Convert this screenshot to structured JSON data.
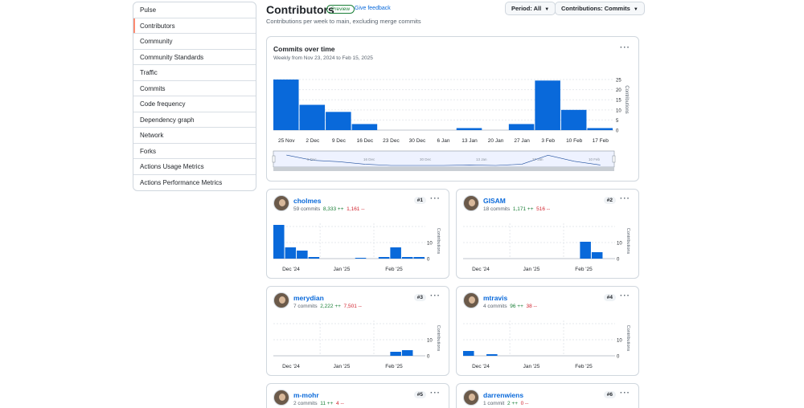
{
  "sidebar": {
    "items": [
      {
        "label": "Pulse"
      },
      {
        "label": "Contributors"
      },
      {
        "label": "Community"
      },
      {
        "label": "Community Standards"
      },
      {
        "label": "Traffic"
      },
      {
        "label": "Commits"
      },
      {
        "label": "Code frequency"
      },
      {
        "label": "Dependency graph"
      },
      {
        "label": "Network"
      },
      {
        "label": "Forks"
      },
      {
        "label": "Actions Usage Metrics"
      },
      {
        "label": "Actions Performance Metrics"
      }
    ],
    "active_index": 1
  },
  "header": {
    "title": "Contributors",
    "badge": "Preview",
    "feedback": "Give feedback",
    "subtitle": "Contributions per week to main, excluding merge commits",
    "period_button": "Period: All",
    "contrib_button": "Contributions: Commits"
  },
  "main_chart": {
    "title": "Commits over time",
    "subtitle": "Weekly from Nov 23, 2024 to Feb 15, 2025",
    "menu": "···",
    "y_axis_label": "Contributions",
    "y_ticks": [
      "25",
      "20",
      "15",
      "10",
      "5",
      "0"
    ],
    "x_labels": [
      "25 Nov",
      "2 Dec",
      "9 Dec",
      "16 Dec",
      "23 Dec",
      "30 Dec",
      "6 Jan",
      "13 Jan",
      "20 Jan",
      "27 Jan",
      "3 Feb",
      "10 Feb",
      "17 Feb"
    ],
    "brush_labels": [
      "5 Dec",
      "16 Dec",
      "30 Dec",
      "13 Jan",
      "27 Jan",
      "10 Feb"
    ]
  },
  "chart_data": [
    {
      "type": "bar",
      "title": "Commits over time",
      "ylabel": "Contributions",
      "categories": [
        "25 Nov",
        "2 Dec",
        "9 Dec",
        "16 Dec",
        "23 Dec",
        "30 Dec",
        "6 Jan",
        "13 Jan",
        "20 Jan",
        "27 Jan",
        "3 Feb",
        "10 Feb",
        "17 Feb"
      ],
      "values": [
        25,
        12.5,
        9,
        3,
        0,
        0,
        0,
        1,
        0,
        3,
        24.5,
        10,
        1
      ],
      "ylim": [
        0,
        27
      ]
    }
  ],
  "contributors": [
    {
      "name": "cholmes",
      "rank": "#1",
      "commits": "59 commits",
      "additions": "8,333 ++",
      "deletions": "1,161 --",
      "values": [
        21,
        7,
        5,
        1,
        0,
        0,
        0,
        0.5,
        0,
        1,
        7,
        1,
        1
      ],
      "x_labels": [
        "Dec '24",
        "Jan '25",
        "Feb '25"
      ],
      "y_ticks": [
        "10",
        "0"
      ],
      "y_label": "Contributions"
    },
    {
      "name": "GISAM",
      "rank": "#2",
      "commits": "18 commits",
      "additions": "1,171 ++",
      "deletions": "516 --",
      "values": [
        0,
        0,
        0,
        0,
        0,
        0,
        0,
        0,
        0,
        0,
        10.5,
        4,
        0
      ],
      "x_labels": [
        "Dec '24",
        "Jan '25",
        "Feb '25"
      ],
      "y_ticks": [
        "10",
        "0"
      ],
      "y_label": "Contributions"
    },
    {
      "name": "merydian",
      "rank": "#3",
      "commits": "7 commits",
      "additions": "2,222 ++",
      "deletions": "7,501 --",
      "values": [
        0,
        0,
        0,
        0,
        0,
        0,
        0,
        0,
        0,
        0,
        2.5,
        3.5,
        0
      ],
      "x_labels": [
        "Dec '24",
        "Jan '25",
        "Feb '25"
      ],
      "y_ticks": [
        "10",
        "0"
      ],
      "y_label": "Contributions"
    },
    {
      "name": "mtravis",
      "rank": "#4",
      "commits": "4 commits",
      "additions": "96 ++",
      "deletions": "38 --",
      "values": [
        3,
        0,
        1,
        0,
        0,
        0,
        0,
        0,
        0,
        0,
        0,
        0,
        0
      ],
      "x_labels": [
        "Dec '24",
        "Jan '25",
        "Feb '25"
      ],
      "y_ticks": [
        "10",
        "0"
      ],
      "y_label": "Contributions"
    },
    {
      "name": "m-mohr",
      "rank": "#5",
      "commits": "2 commits",
      "additions": "11 ++",
      "deletions": "4 --"
    },
    {
      "name": "darrenwiens",
      "rank": "#6",
      "commits": "1 commit",
      "additions": "2 ++",
      "deletions": "0 --"
    }
  ],
  "colors": {
    "bar": "#0969da",
    "brush": "#dbe4ff",
    "accent": "#fd8c73"
  }
}
